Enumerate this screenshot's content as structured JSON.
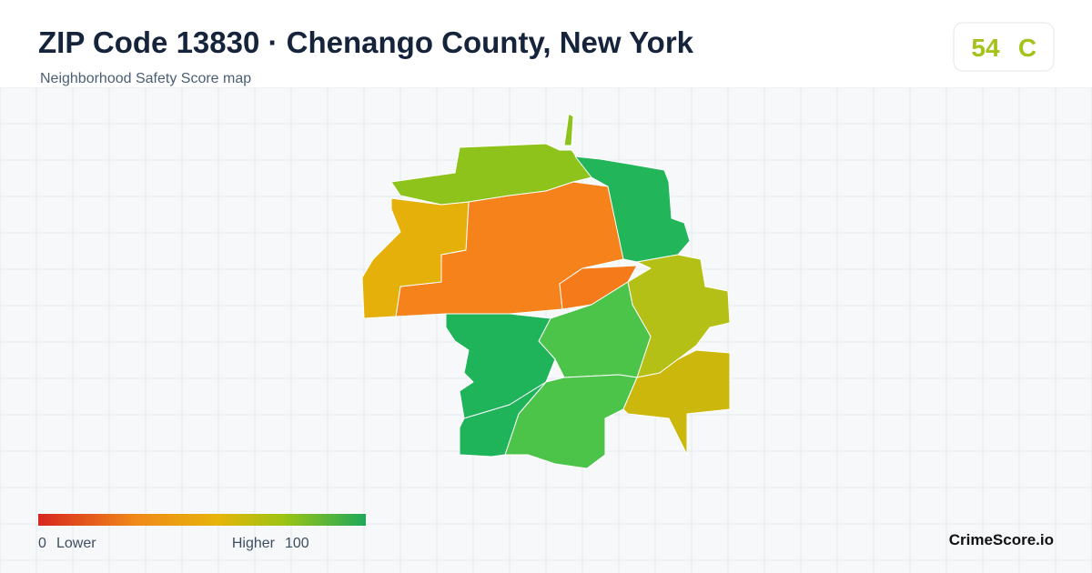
{
  "header": {
    "title": "ZIP Code 13830 · Chenango County, New York",
    "subtitle": "Neighborhood Safety Score map"
  },
  "score": {
    "value": "54",
    "grade": "C"
  },
  "legend": {
    "min": "0",
    "min_label": "Lower",
    "max_label": "Higher",
    "max": "100"
  },
  "brand": "CrimeScore.io"
}
